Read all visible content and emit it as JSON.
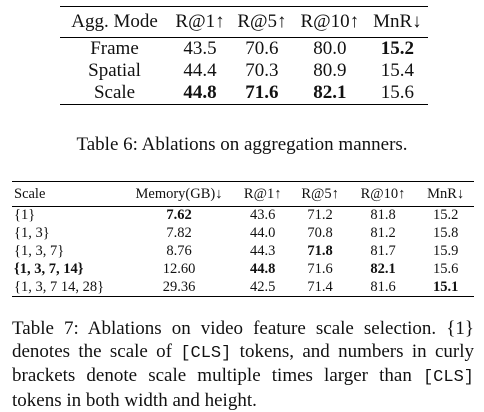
{
  "table6": {
    "headers": [
      "Agg. Mode",
      "R@1↑",
      "R@5↑",
      "R@10↑",
      "MnR↓"
    ],
    "rows": [
      {
        "cells": [
          "Frame",
          "43.5",
          "70.6",
          "80.0",
          "15.2"
        ],
        "bold": [
          false,
          false,
          false,
          false,
          true
        ]
      },
      {
        "cells": [
          "Spatial",
          "44.4",
          "70.3",
          "80.9",
          "15.4"
        ],
        "bold": [
          false,
          false,
          false,
          false,
          false
        ]
      },
      {
        "cells": [
          "Scale",
          "44.8",
          "71.6",
          "82.1",
          "15.6"
        ],
        "bold": [
          false,
          true,
          true,
          true,
          false
        ]
      }
    ],
    "caption": "Table 6: Ablations on aggregation manners."
  },
  "table7": {
    "headers": [
      "Scale",
      "Memory(GB)↓",
      "R@1↑",
      "R@5↑",
      "R@10↑",
      "MnR↓"
    ],
    "rows": [
      {
        "cells": [
          "{1}",
          "7.62",
          "43.6",
          "71.2",
          "81.8",
          "15.2"
        ],
        "bold": [
          false,
          true,
          false,
          false,
          false,
          false
        ]
      },
      {
        "cells": [
          "{1, 3}",
          "7.82",
          "44.0",
          "70.8",
          "81.2",
          "15.8"
        ],
        "bold": [
          false,
          false,
          false,
          false,
          false,
          false
        ]
      },
      {
        "cells": [
          "{1, 3, 7}",
          "8.76",
          "44.3",
          "71.8",
          "81.7",
          "15.9"
        ],
        "bold": [
          false,
          false,
          false,
          true,
          false,
          false
        ]
      },
      {
        "cells": [
          "{1, 3, 7, 14}",
          "12.60",
          "44.8",
          "71.6",
          "82.1",
          "15.6"
        ],
        "bold": [
          true,
          false,
          true,
          false,
          true,
          false
        ]
      },
      {
        "cells": [
          "{1, 3, 7 14, 28}",
          "29.36",
          "42.5",
          "71.4",
          "81.6",
          "15.1"
        ],
        "bold": [
          false,
          false,
          false,
          false,
          false,
          true
        ]
      }
    ],
    "caption": {
      "p1": "Table 7: Ablations on video feature scale selection. {1} denotes the scale of ",
      "code1": "[CLS]",
      "p2": " tokens, and numbers in curly brackets denote scale multiple times larger than ",
      "code2": "[CLS]",
      "p3": " tokens in both width and height."
    }
  }
}
